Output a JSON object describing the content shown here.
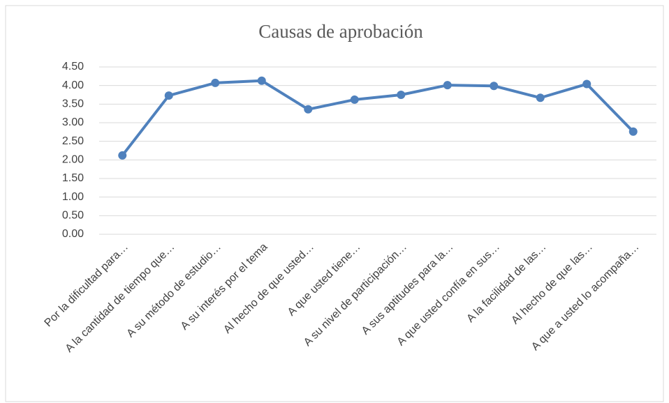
{
  "chart_data": {
    "type": "line",
    "title": "Causas de aprobación",
    "categories": [
      "Por la dificultad para…",
      "A la cantidad de tiempo que…",
      "A su método de estudio…",
      "A su  interés por el tema",
      "Al hecho de que usted…",
      "A que usted tiene…",
      "A su nivel de participación…",
      "A sus aptitudes para la…",
      "A que usted confía en sus…",
      "A la facilidad de las…",
      "Al hecho de que las…",
      "A que a usted lo acompaña…"
    ],
    "series": [
      {
        "name": "Causas de aprobación",
        "color": "#4f81bd",
        "values": [
          2.12,
          3.73,
          4.07,
          4.13,
          3.36,
          3.62,
          3.75,
          4.01,
          3.99,
          3.67,
          4.04,
          2.76
        ]
      }
    ],
    "ylim": [
      0,
      4.5
    ],
    "yticks": [
      {
        "value": 0,
        "label": "0.00"
      },
      {
        "value": 0.5,
        "label": "0.50"
      },
      {
        "value": 1,
        "label": "1.00"
      },
      {
        "value": 1.5,
        "label": "1.50"
      },
      {
        "value": 2,
        "label": "2.00"
      },
      {
        "value": 2.5,
        "label": "2.50"
      },
      {
        "value": 3,
        "label": "3.00"
      },
      {
        "value": 3.5,
        "label": "3.50"
      },
      {
        "value": 4,
        "label": "4.00"
      },
      {
        "value": 4.5,
        "label": "4.50"
      }
    ],
    "grid": true
  }
}
